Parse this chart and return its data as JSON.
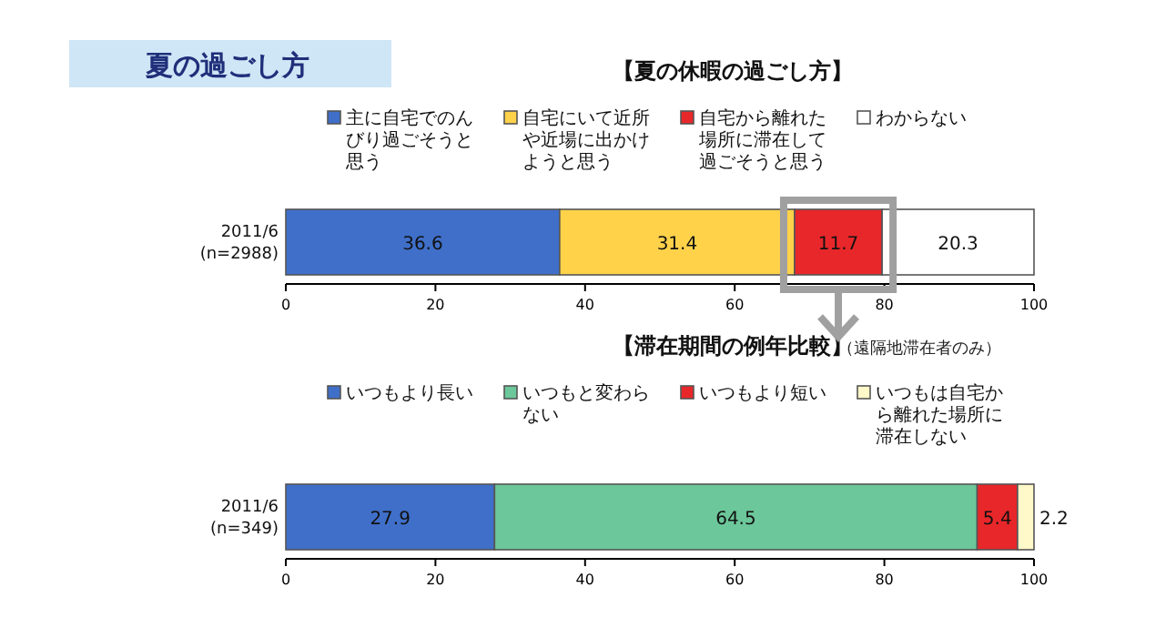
{
  "chart_data": [
    {
      "type": "bar",
      "title": "夏の過ごし方",
      "subtitle": "【夏の休暇の過ごし方】",
      "orientation": "horizontal",
      "stacked": true,
      "categories": [
        "2011/6\n(n=2988)"
      ],
      "series": [
        {
          "name": "主に自宅でのんびり過ごそうと思う",
          "color": "#3f6fc9",
          "values": [
            36.6
          ]
        },
        {
          "name": "自宅にいて近所や近場に出かけようと思う",
          "color": "#ffd24a",
          "values": [
            31.4
          ]
        },
        {
          "name": "自宅から離れた場所に滞在して過ごそうと思う",
          "color": "#e8272a",
          "values": [
            11.7
          ]
        },
        {
          "name": "わからない",
          "color": "#ffffff",
          "values": [
            20.3
          ]
        }
      ],
      "xlim": [
        0,
        100
      ],
      "xticks": [
        0,
        20,
        40,
        60,
        80,
        100
      ],
      "data_labels": true,
      "legend": "top"
    },
    {
      "type": "bar",
      "title": "【滞在期間の例年比較】",
      "annotations": [
        "（遠隔地滞在者のみ）"
      ],
      "orientation": "horizontal",
      "stacked": true,
      "categories": [
        "2011/6\n(n=349)"
      ],
      "series": [
        {
          "name": "いつもより長い",
          "color": "#3f6fc9",
          "values": [
            27.9
          ]
        },
        {
          "name": "いつもと変わらない",
          "color": "#6cc79a",
          "values": [
            64.5
          ]
        },
        {
          "name": "いつもより短い",
          "color": "#e8272a",
          "values": [
            5.4
          ]
        },
        {
          "name": "いつもは自宅から離れた場所に滞在しない",
          "color": "#fff8c8",
          "values": [
            2.2
          ]
        }
      ],
      "xlim": [
        0,
        100
      ],
      "xticks": [
        0,
        20,
        40,
        60,
        80,
        100
      ],
      "data_labels": true,
      "legend": "top"
    }
  ]
}
